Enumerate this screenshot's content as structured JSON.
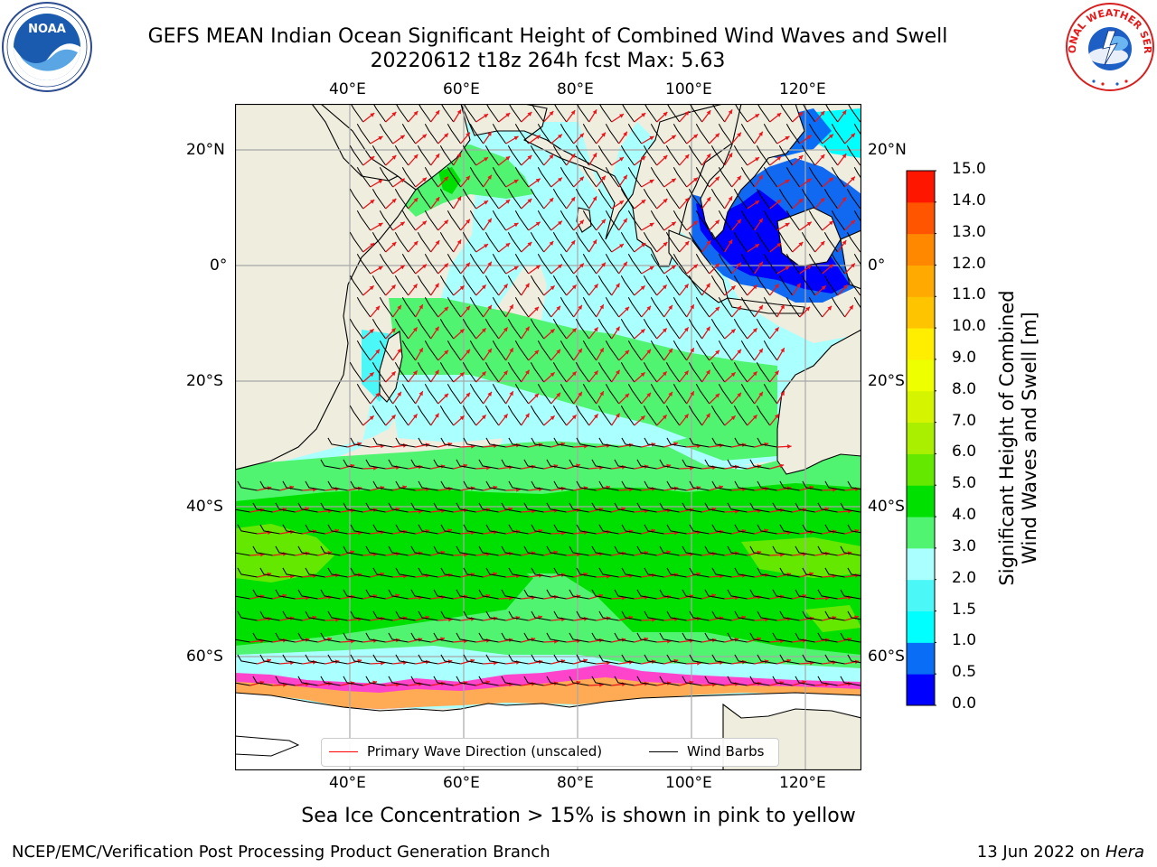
{
  "header": {
    "title_line1": "GEFS MEAN Indian Ocean Significant Height of Combined Wind Waves and Swell",
    "title_line2": "20220612 t18z 264h fcst   Max: 5.63"
  },
  "logos": {
    "left": {
      "name": "noaa-logo",
      "text": "NOAA"
    },
    "right": {
      "name": "nws-logo",
      "text": "NATIONAL WEATHER SERVICE"
    }
  },
  "map": {
    "lon_ticks": [
      "40°E",
      "60°E",
      "80°E",
      "100°E",
      "120°E"
    ],
    "lat_ticks": [
      "20°N",
      "0°",
      "20°S",
      "40°S",
      "60°S"
    ],
    "lon_range": [
      20,
      130
    ],
    "lat_range": [
      -84,
      27
    ],
    "colors": {
      "land": "#efedde",
      "sea_ice": "#ffffff",
      "arrow": "#e8151b",
      "barb": "#000000"
    }
  },
  "chart_data": {
    "type": "heatmap",
    "title": "GEFS MEAN Indian Ocean Significant Height of Combined Wind Waves and Swell",
    "colorbar": {
      "label": "Significant Height of Combined Wind Waves and Swell [m]",
      "ticks": [
        "0.0",
        "0.5",
        "1.0",
        "1.5",
        "2.0",
        "3.0",
        "4.0",
        "5.0",
        "6.0",
        "7.0",
        "8.0",
        "9.0",
        "10.0",
        "11.0",
        "12.0",
        "13.0",
        "14.0",
        "15.0"
      ],
      "colors": [
        "#0000ff",
        "#0a6df5",
        "#00ffff",
        "#4cf7f7",
        "#aaffff",
        "#50f470",
        "#00e000",
        "#64e800",
        "#aaee00",
        "#d4f400",
        "#eeff00",
        "#ffee00",
        "#ffc400",
        "#ffaa00",
        "#ff8800",
        "#ff5500",
        "#ff1600"
      ]
    },
    "max": 5.63
  },
  "legend": {
    "items": [
      {
        "label": "Primary Wave Direction (unscaled)",
        "color": "#ff0000"
      },
      {
        "label": "Wind Barbs",
        "color": "#000000"
      }
    ]
  },
  "caption": "Sea Ice Concentration > 15% is shown in pink to yellow",
  "footer": {
    "left": "NCEP/EMC/Verification Post Processing Product Generation Branch",
    "right_prefix": "13 Jun 2022 on ",
    "right_host": "Hera"
  }
}
